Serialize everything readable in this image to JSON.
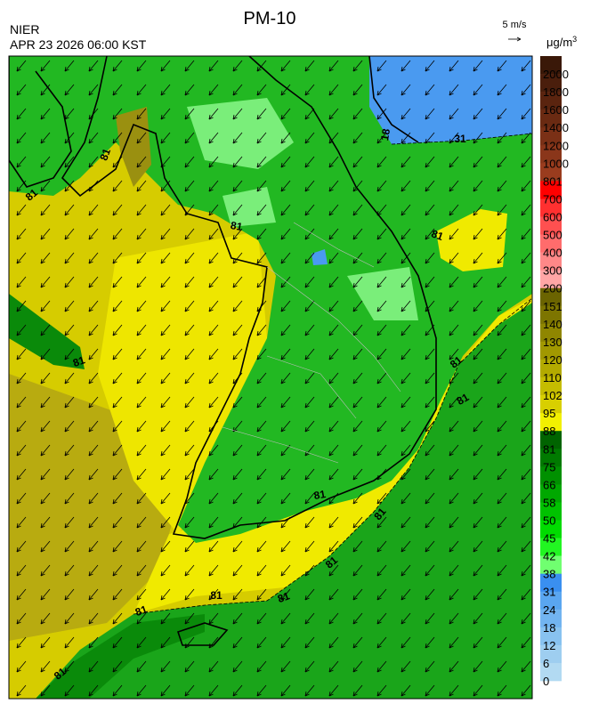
{
  "header": {
    "title": "PM-10",
    "agency": "NIER",
    "datetime": "APR 23 2026 06:00 KST"
  },
  "wind_scale": {
    "label": "5 m/s"
  },
  "colorbar": {
    "unit": "μg/m",
    "unit_sup": "3",
    "labels": [
      2000,
      1800,
      1600,
      1400,
      1200,
      1000,
      801,
      700,
      600,
      500,
      400,
      300,
      200,
      151,
      140,
      130,
      120,
      110,
      102,
      95,
      88,
      81,
      75,
      66,
      58,
      50,
      45,
      42,
      38,
      31,
      24,
      18,
      12,
      6,
      0
    ],
    "colors": [
      "#3a1808",
      "#4a1e0c",
      "#5a240f",
      "#6a2a12",
      "#7a3016",
      "#8a361a",
      "#9a3c1e",
      "#ff0000",
      "#ff3030",
      "#ff5050",
      "#ff6c6c",
      "#ff8888",
      "#ffa6a6",
      "#6b6400",
      "#7d7500",
      "#8f8600",
      "#a19800",
      "#b3aa00",
      "#c5bc00",
      "#d8cf00",
      "#f2f000",
      "#006400",
      "#007a00",
      "#009000",
      "#00a800",
      "#00c200",
      "#00dc00",
      "#22f522",
      "#70ff70",
      "#3a8ff0",
      "#5aa6f0",
      "#72b4f0",
      "#88c2f0",
      "#9ecef0",
      "#b2daf2"
    ]
  },
  "contour_labels": [
    "81",
    "81",
    "81",
    "81",
    "81",
    "81",
    "81",
    "81",
    "81",
    "81",
    "81",
    "81",
    "81",
    "81",
    "31",
    "18"
  ]
}
